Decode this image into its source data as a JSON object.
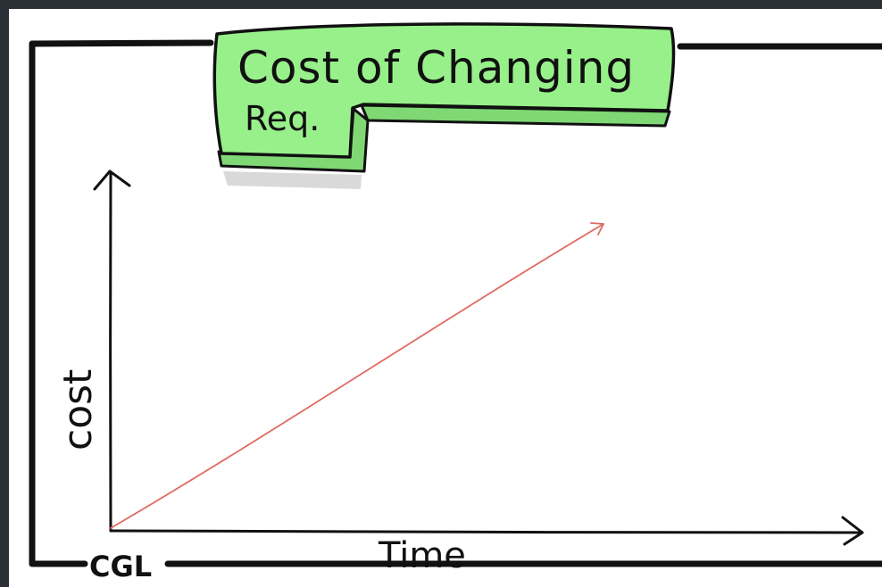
{
  "title": {
    "line1": "Cost of Changing",
    "line2": "Req."
  },
  "axes": {
    "y_label": "cost",
    "x_label": "Time"
  },
  "footer_label": "CGL",
  "colors": {
    "frame_bg": "#2b2f36",
    "canvas": "#ffffff",
    "ink": "#111111",
    "banner_fill": "#98f08a",
    "banner_side": "#7fd874",
    "banner_shadow": "#d9d9d9",
    "trend_line": "#e06b62"
  },
  "chart_data": {
    "type": "line",
    "title": "Cost of Changing Req.",
    "xlabel": "Time",
    "ylabel": "cost",
    "series": [
      {
        "values": [
          [
            0,
            0
          ],
          [
            1,
            1
          ]
        ]
      }
    ]
  }
}
